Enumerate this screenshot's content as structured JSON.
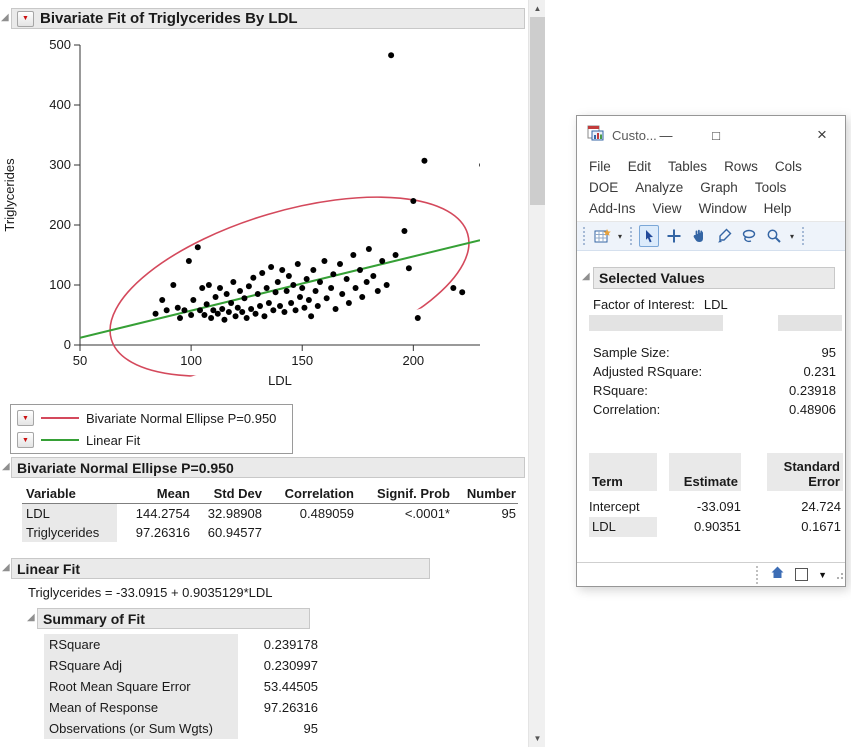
{
  "report": {
    "title": "Bivariate Fit of Triglycerides By LDL",
    "legend": [
      {
        "label": "Bivariate Normal Ellipse P=0.950",
        "color": "#d4495c"
      },
      {
        "label": "Linear Fit",
        "color": "#36a036"
      }
    ],
    "ellipse_section": {
      "title": "Bivariate Normal Ellipse P=0.950",
      "columns": [
        "Variable",
        "Mean",
        "Std Dev",
        "Correlation",
        "Signif. Prob",
        "Number"
      ],
      "rows": [
        [
          "LDL",
          "144.2754",
          "32.98908",
          "0.489059",
          "<.0001*",
          "95"
        ],
        [
          "Triglycerides",
          "97.26316",
          "60.94577",
          "",
          "",
          ""
        ]
      ]
    },
    "linear_fit": {
      "title": "Linear Fit",
      "equation": "Triglycerides = -33.0915 + 0.9035129*LDL"
    },
    "summary_of_fit": {
      "title": "Summary of Fit",
      "rows": [
        [
          "RSquare",
          "0.239178"
        ],
        [
          "RSquare Adj",
          "0.230997"
        ],
        [
          "Root Mean Square Error",
          "53.44505"
        ],
        [
          "Mean of Response",
          "97.26316"
        ],
        [
          "Observations (or Sum Wgts)",
          "95"
        ]
      ]
    }
  },
  "window": {
    "title": "Custo...",
    "controls": {
      "minimize": "—",
      "maximize": "□",
      "close": "×"
    },
    "menu_rows": [
      [
        "File",
        "Edit",
        "Tables",
        "Rows",
        "Cols"
      ],
      [
        "DOE",
        "Analyze",
        "Graph",
        "Tools"
      ],
      [
        "Add-Ins",
        "View",
        "Window",
        "Help"
      ]
    ],
    "toolbar_tools": [
      "new-data-table",
      "arrow-tool",
      "move-tool",
      "hand-tool",
      "brush-tool",
      "lasso-tool",
      "magnifier-tool"
    ],
    "selected_values": {
      "title": "Selected Values",
      "factor_label": "Factor of Interest:",
      "factor_value": "LDL",
      "stats": [
        [
          "Sample Size:",
          "95"
        ],
        [
          "Adjusted RSquare:",
          "0.231"
        ],
        [
          "RSquare:",
          "0.23918"
        ],
        [
          "Correlation:",
          "0.48906"
        ]
      ],
      "table": {
        "headers": [
          "Term",
          "Estimate",
          "Standard Error"
        ],
        "rows": [
          [
            "Intercept",
            "-33.091",
            "24.724"
          ],
          [
            "LDL",
            "0.90351",
            "0.1671"
          ]
        ]
      }
    },
    "statusbar_icons": [
      "home-icon",
      "checkbox",
      "dropdown-icon"
    ]
  },
  "chart_data": {
    "type": "scatter",
    "title": "Bivariate Fit of Triglycerides By LDL",
    "xlabel": "LDL",
    "ylabel": "Triglycerides",
    "xlim": [
      50,
      230
    ],
    "ylim": [
      0,
      500
    ],
    "xticks": [
      50,
      100,
      150,
      200
    ],
    "yticks": [
      0,
      100,
      200,
      300,
      400,
      500
    ],
    "grid": false,
    "fit_line": {
      "label": "Linear Fit",
      "intercept": -33.0915,
      "slope": 0.9035129,
      "color": "#36a036"
    },
    "ellipse": {
      "label": "Bivariate Normal Ellipse P=0.950",
      "p": 0.95,
      "mean_x": 144.2754,
      "mean_y": 97.26316,
      "sd_x": 32.98908,
      "sd_y": 60.94577,
      "correlation": 0.489059,
      "color": "#d4495c"
    },
    "points": [
      [
        84,
        52
      ],
      [
        87,
        75
      ],
      [
        89,
        58
      ],
      [
        92,
        100
      ],
      [
        94,
        62
      ],
      [
        95,
        45
      ],
      [
        97,
        58
      ],
      [
        99,
        140
      ],
      [
        100,
        50
      ],
      [
        101,
        75
      ],
      [
        103,
        163
      ],
      [
        104,
        58
      ],
      [
        105,
        95
      ],
      [
        106,
        50
      ],
      [
        107,
        68
      ],
      [
        108,
        100
      ],
      [
        109,
        45
      ],
      [
        110,
        58
      ],
      [
        111,
        80
      ],
      [
        112,
        52
      ],
      [
        113,
        95
      ],
      [
        114,
        60
      ],
      [
        115,
        42
      ],
      [
        116,
        85
      ],
      [
        117,
        55
      ],
      [
        118,
        70
      ],
      [
        119,
        105
      ],
      [
        120,
        48
      ],
      [
        121,
        62
      ],
      [
        122,
        90
      ],
      [
        123,
        55
      ],
      [
        124,
        78
      ],
      [
        125,
        45
      ],
      [
        126,
        98
      ],
      [
        127,
        60
      ],
      [
        128,
        112
      ],
      [
        129,
        52
      ],
      [
        130,
        85
      ],
      [
        131,
        65
      ],
      [
        132,
        120
      ],
      [
        133,
        48
      ],
      [
        134,
        95
      ],
      [
        135,
        70
      ],
      [
        136,
        130
      ],
      [
        137,
        58
      ],
      [
        138,
        88
      ],
      [
        139,
        105
      ],
      [
        140,
        65
      ],
      [
        141,
        125
      ],
      [
        142,
        55
      ],
      [
        143,
        90
      ],
      [
        144,
        115
      ],
      [
        145,
        70
      ],
      [
        146,
        100
      ],
      [
        147,
        58
      ],
      [
        148,
        135
      ],
      [
        149,
        80
      ],
      [
        150,
        95
      ],
      [
        151,
        62
      ],
      [
        152,
        110
      ],
      [
        153,
        75
      ],
      [
        154,
        48
      ],
      [
        155,
        125
      ],
      [
        156,
        90
      ],
      [
        157,
        65
      ],
      [
        158,
        105
      ],
      [
        160,
        140
      ],
      [
        161,
        78
      ],
      [
        163,
        95
      ],
      [
        164,
        118
      ],
      [
        165,
        60
      ],
      [
        167,
        135
      ],
      [
        168,
        85
      ],
      [
        170,
        110
      ],
      [
        171,
        70
      ],
      [
        173,
        150
      ],
      [
        174,
        95
      ],
      [
        176,
        125
      ],
      [
        177,
        80
      ],
      [
        179,
        105
      ],
      [
        180,
        160
      ],
      [
        182,
        115
      ],
      [
        184,
        90
      ],
      [
        186,
        140
      ],
      [
        188,
        100
      ],
      [
        190,
        483
      ],
      [
        192,
        150
      ],
      [
        222,
        88
      ],
      [
        196,
        190
      ],
      [
        198,
        128
      ],
      [
        200,
        240
      ],
      [
        202,
        45
      ],
      [
        205,
        307
      ],
      [
        218,
        95
      ],
      [
        231,
        300
      ]
    ]
  }
}
